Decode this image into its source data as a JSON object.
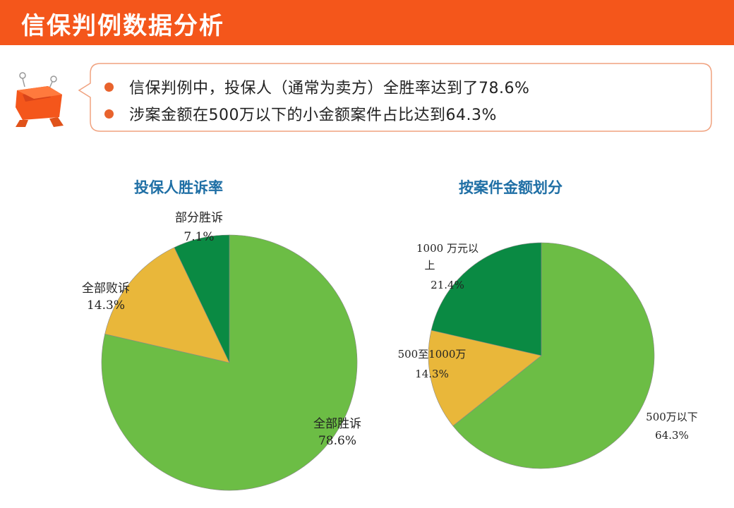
{
  "header": {
    "title": "信保判例数据分析"
  },
  "summary": {
    "bullets": [
      "信保判例中，投保人（通常为卖方）全胜率达到了78.6%",
      "涉案金额在500万以下的小金额案件占比达到64.3%"
    ]
  },
  "colors": {
    "header": "#f4561b",
    "green_light": "#6cbd45",
    "yellow": "#e9b73a",
    "green_dark": "#0a8a43",
    "title_blue": "#1f6fa5"
  },
  "icons": {
    "mascot": "orange-basket-mascot-icon",
    "bullet": "bullet-dot-icon"
  },
  "chart_data": [
    {
      "type": "pie",
      "title": "投保人胜诉率",
      "slices": [
        {
          "label": "全部胜诉",
          "value": 78.6,
          "value_label": "78.6%",
          "color": "#6cbd45"
        },
        {
          "label": "全部败诉",
          "value": 14.3,
          "value_label": "14.3%",
          "color": "#e9b73a"
        },
        {
          "label": "部分胜诉",
          "value": 7.1,
          "value_label": "7.1%",
          "color": "#0a8a43"
        }
      ]
    },
    {
      "type": "pie",
      "title": "按案件金额划分",
      "slices": [
        {
          "label": "500万以下",
          "value": 64.3,
          "value_label": "64.3%",
          "color": "#6cbd45"
        },
        {
          "label": "500至1000万",
          "value": 14.3,
          "value_label": "14.3%",
          "color": "#e9b73a"
        },
        {
          "label": "1000 万元以上",
          "value": 21.4,
          "value_label": "21.4%",
          "color": "#0a8a43"
        }
      ]
    }
  ]
}
